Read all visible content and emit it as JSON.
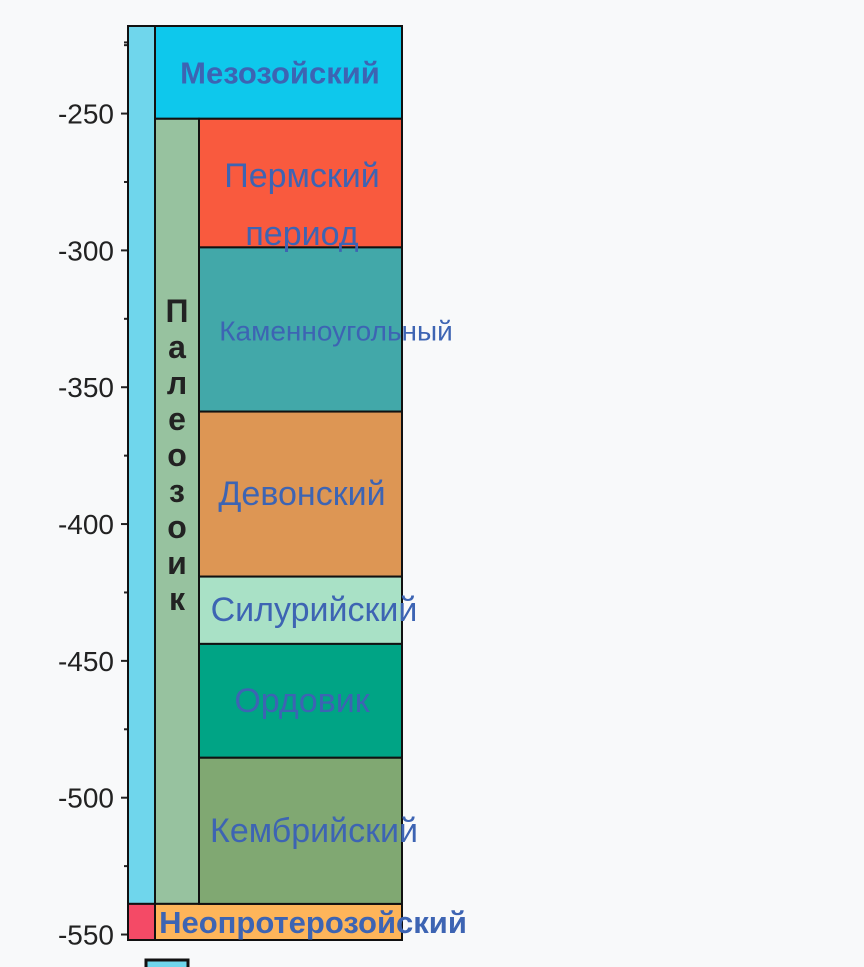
{
  "axis": {
    "min": -552,
    "max": -218,
    "major_ticks": [
      -250,
      -300,
      -350,
      -400,
      -450,
      -500,
      -550
    ],
    "minor_ticks": [
      -225,
      -275,
      -325,
      -375,
      -425,
      -475,
      -525
    ],
    "labels": [
      "-250",
      "-300",
      "-350",
      "-400",
      "-450",
      "-500",
      "-550"
    ]
  },
  "eons": [
    {
      "name": "",
      "start": -218,
      "end": -538.8,
      "color": "#6fd6ec"
    },
    {
      "name": "",
      "start": -538.8,
      "end": -552,
      "color": "#f44a66"
    }
  ],
  "eras": [
    {
      "name": "Мезозойский",
      "start": -218,
      "end": -251.9,
      "color": "#0ec8ec",
      "bold": true
    },
    {
      "name": "Палеозоик",
      "start": -251.9,
      "end": -538.8,
      "color": "#97c29f",
      "bold": true,
      "vertical": true
    },
    {
      "name": "Неопротерозойский",
      "start": -538.8,
      "end": -552,
      "color": "#feb55a",
      "bold": true
    }
  ],
  "periods": [
    {
      "name": "Пермский период",
      "lines": [
        "Пермский",
        "период"
      ],
      "start": -251.9,
      "end": -298.9,
      "color": "#f95a3e"
    },
    {
      "name": "Каменноугольный",
      "lines": [
        "Каменноугольный"
      ],
      "start": -298.9,
      "end": -358.9,
      "color": "#42a8a9"
    },
    {
      "name": "Девонский",
      "lines": [
        "Девонский"
      ],
      "start": -358.9,
      "end": -419.2,
      "color": "#dd9654"
    },
    {
      "name": "Силурийский",
      "lines": [
        "Силурийский"
      ],
      "start": -419.2,
      "end": -443.8,
      "color": "#a9e1c6"
    },
    {
      "name": "Ордовик",
      "lines": [
        "Ордовик"
      ],
      "start": -443.8,
      "end": -485.4,
      "color": "#00a485"
    },
    {
      "name": "Кембрийский",
      "lines": [
        "Кембрийский"
      ],
      "start": -485.4,
      "end": -538.8,
      "color": "#80a872"
    }
  ],
  "legend": {
    "swatch_color": "#6fd6ec"
  },
  "text_color": "#3d64b3",
  "vertical_text_color": "#222222"
}
